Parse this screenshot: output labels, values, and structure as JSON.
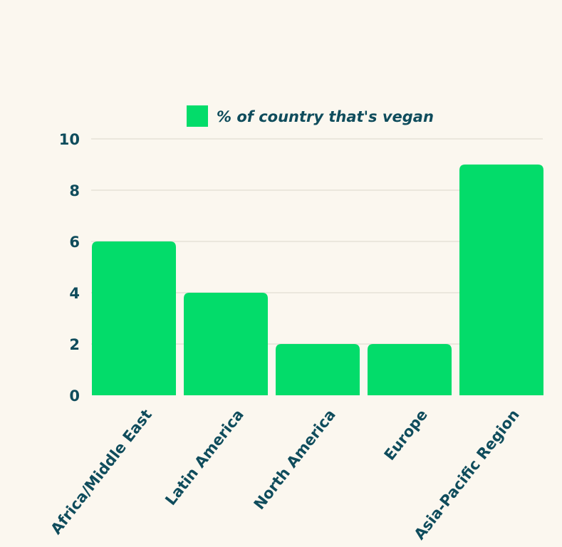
{
  "chart_data": {
    "type": "bar",
    "categories": [
      "Africa/Middle East",
      "Latin America",
      "North America",
      "Europe",
      "Asia-Pacific Region"
    ],
    "series": [
      {
        "name": "% of country that's vegan",
        "values": [
          6,
          4,
          2,
          2,
          9
        ]
      }
    ],
    "ylim": [
      0,
      10
    ],
    "yticks": [
      0,
      2,
      4,
      6,
      8,
      10
    ],
    "grid": true,
    "legend_position": "top",
    "colors": {
      "bar": "#03dc6a",
      "text": "#0f4c5c",
      "grid": "#e6e2d7",
      "background": "#fbf7ef"
    }
  }
}
